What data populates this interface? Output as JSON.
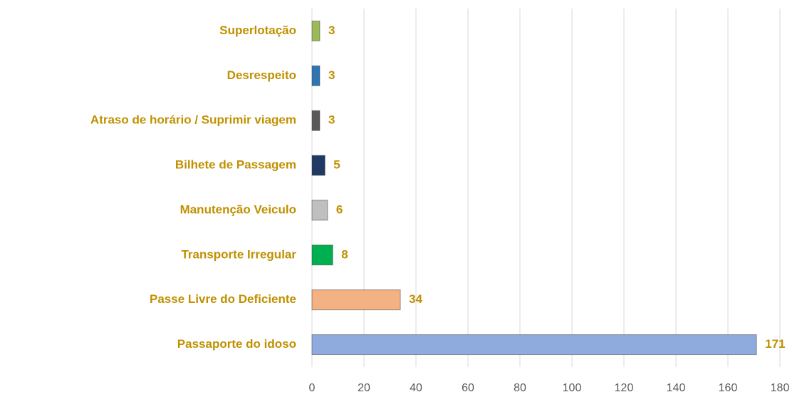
{
  "chart_data": {
    "type": "hbar",
    "categories": [
      "Superlotação",
      "Desrespeito",
      "Atraso de horário / Suprimir viagem",
      "Bilhete de Passagem",
      "Manutenção Veiculo",
      "Transporte Irregular",
      "Passe Livre do Deficiente",
      "Passaporte do idoso"
    ],
    "values": [
      3,
      3,
      3,
      5,
      6,
      8,
      34,
      171
    ],
    "colors": [
      "#9bbb59",
      "#2e75b6",
      "#595959",
      "#1f3864",
      "#bfbfbf",
      "#00b050",
      "#f4b183",
      "#8faadc"
    ],
    "xlim": [
      0,
      180
    ],
    "xticks": [
      0,
      20,
      40,
      60,
      80,
      100,
      120,
      140,
      160,
      180
    ],
    "grid": true
  }
}
